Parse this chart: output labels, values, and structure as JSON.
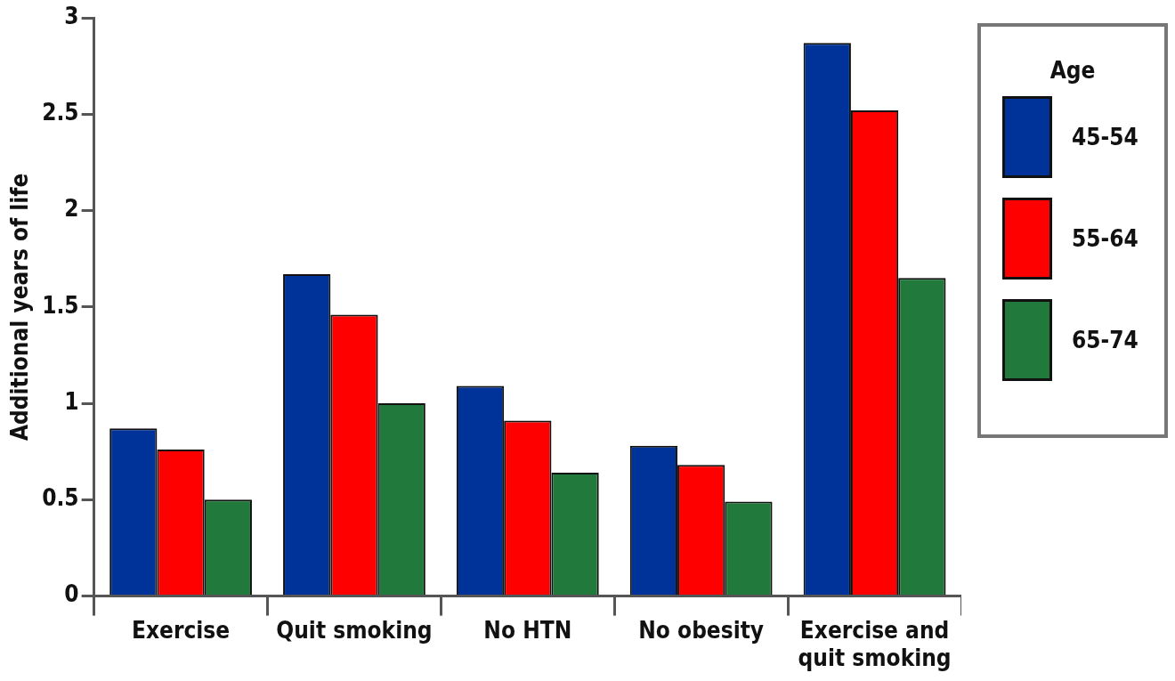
{
  "chart_data": {
    "type": "bar",
    "ylabel": "Additional years of life",
    "legend_title": "Age",
    "legend": "top right",
    "grid": false,
    "categories": [
      "Exercise",
      "Quit smoking",
      "No HTN",
      "No obesity",
      "Exercise and quit smoking"
    ],
    "ylim": [
      0,
      3
    ],
    "yticks": [
      0,
      0.5,
      1,
      1.5,
      2,
      2.5,
      3
    ],
    "series": [
      {
        "name": "45-54",
        "color": "#003399",
        "values": [
          0.87,
          1.67,
          1.09,
          0.78,
          2.87
        ]
      },
      {
        "name": "55-64",
        "color": "#ff0000",
        "values": [
          0.76,
          1.46,
          0.91,
          0.68,
          2.52
        ]
      },
      {
        "name": "65-74",
        "color": "#217a3c",
        "values": [
          0.5,
          1.0,
          0.64,
          0.49,
          1.65
        ]
      }
    ]
  }
}
